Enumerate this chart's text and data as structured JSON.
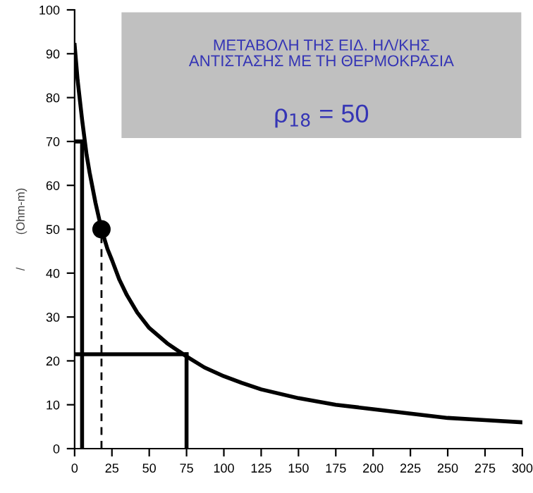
{
  "chart_data": {
    "type": "line",
    "ylabel": "/          (Ohm-m)",
    "annotations": [
      "ΜΕΤΑΒΟΛΗ ΤΗΣ ΕΙΔ. ΗΛ/ΚΗΣ\nΑΝΤΙΣΤΑΣΗΣ ΜΕ ΤΗ ΘΕΡΜΟΚΡΑΣΙΑ",
      "ρ$_{18}$ = 50"
    ],
    "series": [
      {
        "x": [
          0,
          2,
          5,
          8,
          10,
          14,
          18,
          22,
          25,
          30,
          35,
          42,
          50,
          62,
          75,
          87,
          100,
          112,
          125,
          150,
          175,
          200,
          225,
          250,
          275,
          300
        ],
        "values": [
          92,
          84,
          75,
          67,
          63,
          56,
          50,
          45.5,
          43,
          38.5,
          35,
          31,
          27.5,
          24,
          21,
          18.5,
          16.5,
          15,
          13.5,
          11.5,
          10,
          9,
          8,
          7,
          6.5,
          6
        ],
        "color": "#000000"
      },
      {
        "x": [
          5,
          5
        ],
        "values": [
          0,
          70
        ],
        "color": "#000000"
      },
      {
        "x": [
          0,
          5
        ],
        "values": [
          70,
          70
        ],
        "color": "#000000"
      },
      {
        "x": [
          18,
          18
        ],
        "values": [
          0,
          50
        ],
        "color": "#000000",
        "line_style": "dashed"
      },
      {
        "x": [
          0,
          75
        ],
        "values": [
          21.5,
          21.5
        ],
        "color": "#000000"
      },
      {
        "x": [
          75,
          75
        ],
        "values": [
          0,
          21.5
        ],
        "color": "#000000"
      },
      {
        "type": "scatter",
        "x": [
          18
        ],
        "values": [
          50
        ],
        "color": "#000000",
        "marker": "circle"
      }
    ],
    "xlim": [
      0,
      300
    ],
    "xticks": [
      0,
      25,
      50,
      75,
      100,
      125,
      150,
      175,
      200,
      225,
      250,
      275,
      300
    ],
    "ylim": [
      0,
      100
    ],
    "yticks": [
      0,
      10,
      20,
      30,
      40,
      50,
      60,
      70,
      80,
      90,
      100
    ],
    "grid": false,
    "legend": false
  }
}
